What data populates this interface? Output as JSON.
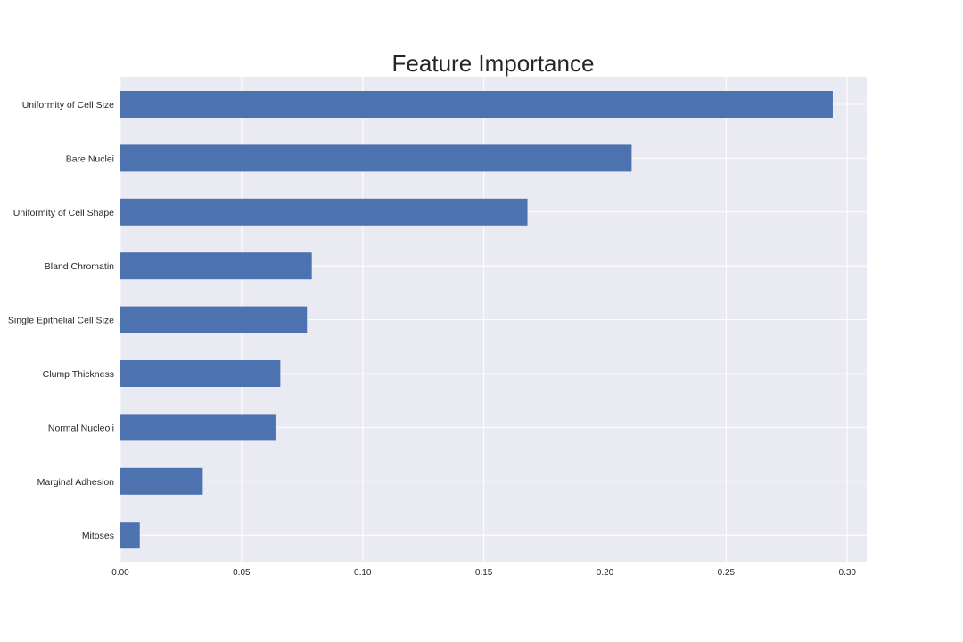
{
  "chart_data": {
    "type": "bar",
    "orientation": "horizontal",
    "title": "Feature Importance",
    "xlabel": "",
    "ylabel": "",
    "categories": [
      "Uniformity of Cell Size",
      "Bare Nuclei",
      "Uniformity of Cell Shape",
      "Bland Chromatin",
      "Single Epithelial Cell Size",
      "Clump Thickness",
      "Normal Nucleoli",
      "Marginal Adhesion",
      "Mitoses"
    ],
    "values": [
      0.294,
      0.211,
      0.168,
      0.079,
      0.077,
      0.066,
      0.064,
      0.034,
      0.008
    ],
    "xlim": [
      0,
      0.308
    ],
    "xticks": [
      0.0,
      0.05,
      0.1,
      0.15,
      0.2,
      0.25,
      0.3
    ],
    "xtick_labels": [
      "0.00",
      "0.05",
      "0.10",
      "0.15",
      "0.20",
      "0.25",
      "0.30"
    ],
    "grid": true,
    "legend": "none",
    "colors": {
      "bar": "#4c72b0",
      "plot_background": "#eaeaf2",
      "grid": "#ffffff",
      "text": "#262626"
    }
  }
}
